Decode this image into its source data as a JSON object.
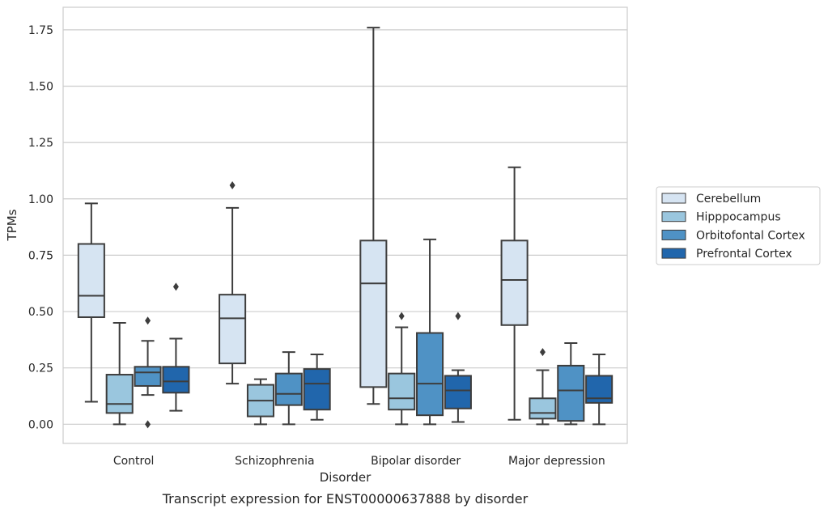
{
  "chart_data": {
    "type": "box",
    "title": "",
    "caption": "Transcript expression for ENST00000637888 by disorder",
    "xlabel": "Disorder",
    "ylabel": "TPMs",
    "categories": [
      "Control",
      "Schizophrenia",
      "Bipolar disorder",
      "Major depression"
    ],
    "ylim": [
      -0.085,
      1.85
    ],
    "yticks": [
      0.0,
      0.25,
      0.5,
      0.75,
      1.0,
      1.25,
      1.5,
      1.75
    ],
    "ytick_labels": [
      "0.00",
      "0.25",
      "0.50",
      "0.75",
      "1.00",
      "1.25",
      "1.50",
      "1.75"
    ],
    "grid": "horizontal",
    "legend_position": "right, outside plot",
    "series": [
      {
        "name": "Cerebellum",
        "color": "#d6e4f2",
        "boxes": [
          {
            "whisker_low": 0.1,
            "q1": 0.475,
            "median": 0.57,
            "q3": 0.8,
            "whisker_high": 0.98,
            "outliers": []
          },
          {
            "whisker_low": 0.18,
            "q1": 0.27,
            "median": 0.47,
            "q3": 0.575,
            "whisker_high": 0.96,
            "outliers": [
              1.06
            ]
          },
          {
            "whisker_low": 0.09,
            "q1": 0.165,
            "median": 0.625,
            "q3": 0.815,
            "whisker_high": 1.76,
            "outliers": []
          },
          {
            "whisker_low": 0.02,
            "q1": 0.44,
            "median": 0.64,
            "q3": 0.815,
            "whisker_high": 1.14,
            "outliers": []
          }
        ]
      },
      {
        "name": "Hipppocampus",
        "color": "#9ac6de",
        "boxes": [
          {
            "whisker_low": 0.0,
            "q1": 0.05,
            "median": 0.09,
            "q3": 0.22,
            "whisker_high": 0.45,
            "outliers": []
          },
          {
            "whisker_low": 0.0,
            "q1": 0.035,
            "median": 0.105,
            "q3": 0.175,
            "whisker_high": 0.2,
            "outliers": []
          },
          {
            "whisker_low": 0.0,
            "q1": 0.065,
            "median": 0.115,
            "q3": 0.225,
            "whisker_high": 0.43,
            "outliers": [
              0.48
            ]
          },
          {
            "whisker_low": 0.0,
            "q1": 0.025,
            "median": 0.05,
            "q3": 0.115,
            "whisker_high": 0.24,
            "outliers": [
              0.32
            ]
          }
        ]
      },
      {
        "name": "Orbitofontal Cortex",
        "color": "#4f92c5",
        "boxes": [
          {
            "whisker_low": 0.13,
            "q1": 0.17,
            "median": 0.23,
            "q3": 0.255,
            "whisker_high": 0.37,
            "outliers": [
              0.0,
              0.46
            ]
          },
          {
            "whisker_low": 0.0,
            "q1": 0.085,
            "median": 0.135,
            "q3": 0.225,
            "whisker_high": 0.32,
            "outliers": []
          },
          {
            "whisker_low": 0.0,
            "q1": 0.04,
            "median": 0.18,
            "q3": 0.405,
            "whisker_high": 0.82,
            "outliers": []
          },
          {
            "whisker_low": 0.0,
            "q1": 0.015,
            "median": 0.15,
            "q3": 0.26,
            "whisker_high": 0.36,
            "outliers": []
          }
        ]
      },
      {
        "name": "Prefrontal Cortex",
        "color": "#2166ac",
        "boxes": [
          {
            "whisker_low": 0.06,
            "q1": 0.14,
            "median": 0.19,
            "q3": 0.255,
            "whisker_high": 0.38,
            "outliers": [
              0.61
            ]
          },
          {
            "whisker_low": 0.02,
            "q1": 0.065,
            "median": 0.18,
            "q3": 0.245,
            "whisker_high": 0.31,
            "outliers": []
          },
          {
            "whisker_low": 0.01,
            "q1": 0.07,
            "median": 0.15,
            "q3": 0.215,
            "whisker_high": 0.24,
            "outliers": [
              0.48
            ]
          },
          {
            "whisker_low": 0.0,
            "q1": 0.095,
            "median": 0.115,
            "q3": 0.215,
            "whisker_high": 0.31,
            "outliers": []
          }
        ]
      }
    ]
  }
}
